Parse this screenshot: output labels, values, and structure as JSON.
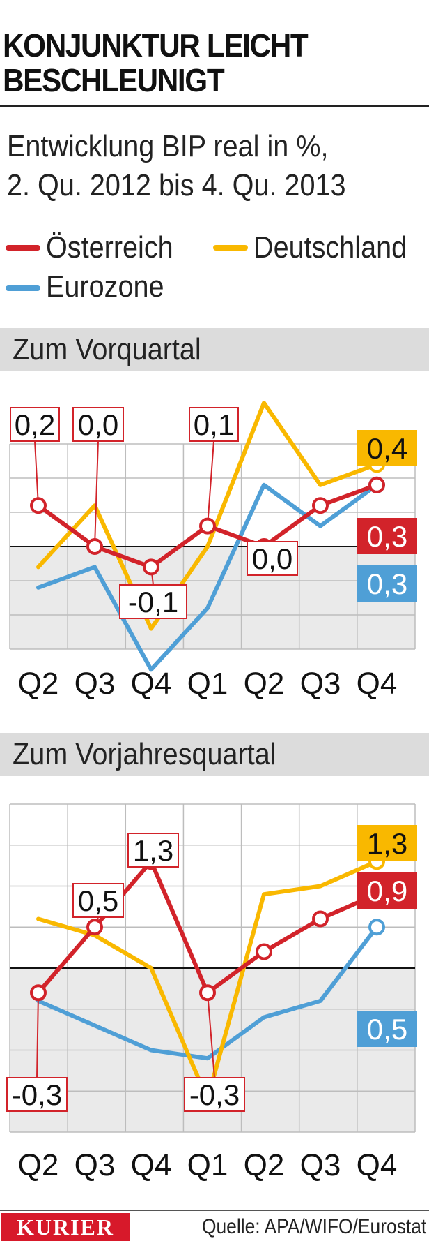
{
  "header": {
    "title_line1": "KONJUNKTUR LEICHT",
    "title_line2": "BESCHLEUNIGT",
    "subtitle_line1": "Entwicklung BIP real in %,",
    "subtitle_line2": "2. Qu. 2012 bis 4. Qu. 2013"
  },
  "legend": [
    {
      "name": "Österreich",
      "color": "#d2232a"
    },
    {
      "name": "Deutschland",
      "color": "#f9b800"
    },
    {
      "name": "Eurozone",
      "color": "#4f9fd6"
    }
  ],
  "footer": {
    "logo": "KURIER",
    "source": "Quelle: APA/WIFO/Eurostat"
  },
  "chart_data": [
    {
      "type": "line",
      "title": "Zum Vorquartal",
      "categories": [
        "Q2",
        "Q3",
        "Q4",
        "Q1",
        "Q2",
        "Q3",
        "Q4"
      ],
      "ylim": [
        -0.5,
        0.5
      ],
      "grid": true,
      "series": [
        {
          "name": "Österreich",
          "color": "#d2232a",
          "values": [
            0.2,
            0.0,
            -0.1,
            0.1,
            0.0,
            0.2,
            0.3
          ],
          "labels": [
            "0,2",
            "0,0",
            "-0,1",
            "0,1",
            "0,0",
            "",
            "0,3"
          ]
        },
        {
          "name": "Deutschland",
          "color": "#f9b800",
          "values": [
            -0.1,
            0.2,
            -0.4,
            0.0,
            0.7,
            0.3,
            0.4
          ],
          "labels": [
            "",
            "",
            "",
            "",
            "",
            "",
            "0,4"
          ]
        },
        {
          "name": "Eurozone",
          "color": "#4f9fd6",
          "values": [
            -0.2,
            -0.1,
            -0.6,
            -0.3,
            0.3,
            0.1,
            0.3
          ],
          "labels": [
            "",
            "",
            "",
            "",
            "",
            "",
            "0,3"
          ]
        }
      ]
    },
    {
      "type": "line",
      "title": "Zum Vorjahresquartal",
      "categories": [
        "Q2",
        "Q3",
        "Q4",
        "Q1",
        "Q2",
        "Q3",
        "Q4"
      ],
      "ylim": [
        -2.0,
        2.0
      ],
      "grid": true,
      "series": [
        {
          "name": "Österreich",
          "color": "#d2232a",
          "values": [
            -0.3,
            0.5,
            1.3,
            -0.3,
            0.2,
            0.6,
            0.9
          ],
          "labels": [
            "-0,3",
            "0,5",
            "1,3",
            "-0,3",
            "",
            "",
            "0,9"
          ]
        },
        {
          "name": "Deutschland",
          "color": "#f9b800",
          "values": [
            0.6,
            0.4,
            0.0,
            -1.6,
            0.9,
            1.0,
            1.3
          ],
          "labels": [
            "",
            "",
            "",
            "",
            "",
            "",
            "1,3"
          ]
        },
        {
          "name": "Eurozone",
          "color": "#4f9fd6",
          "values": [
            -0.4,
            -0.7,
            -1.0,
            -1.1,
            -0.6,
            -0.4,
            0.5
          ],
          "labels": [
            "",
            "",
            "",
            "",
            "",
            "",
            "0,5"
          ]
        }
      ]
    }
  ]
}
